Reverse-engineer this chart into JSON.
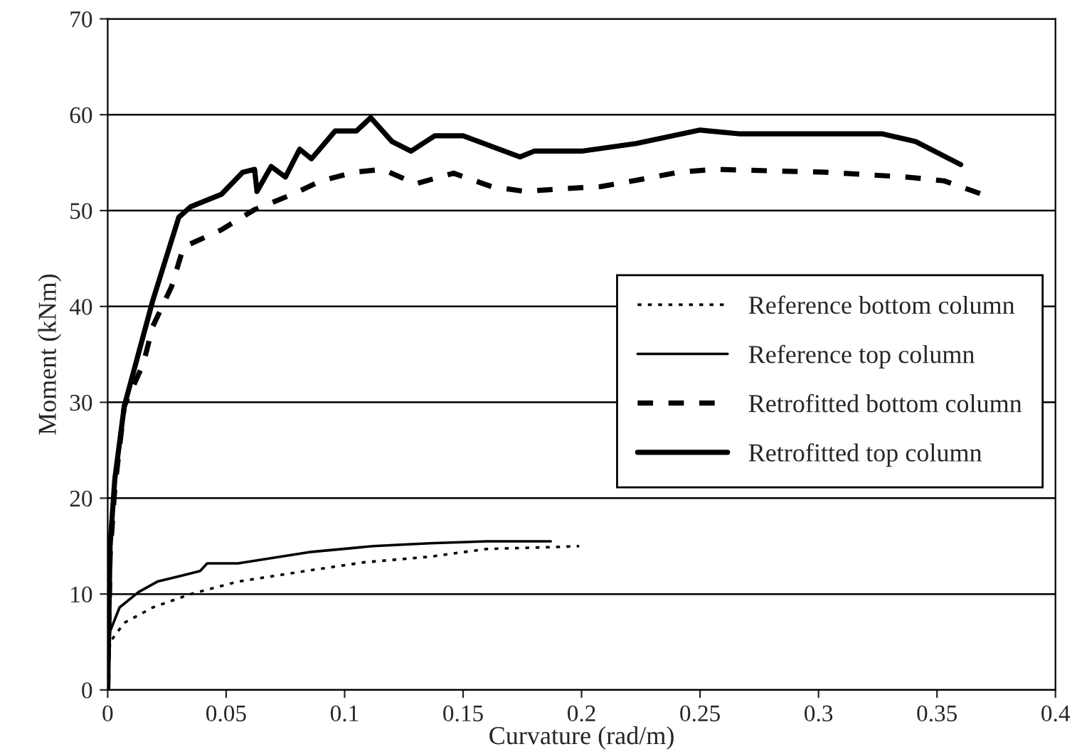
{
  "chart_data": {
    "type": "line",
    "xlabel": "Curvature (rad/m)",
    "ylabel": "Moment (kNm)",
    "xlim": [
      0,
      0.4
    ],
    "xticks": [
      0,
      0.05,
      0.1,
      0.15,
      0.2,
      0.25,
      0.3,
      0.35,
      0.4
    ],
    "ylim": [
      0,
      70
    ],
    "yticks": [
      0,
      10,
      20,
      30,
      40,
      50,
      60,
      70
    ],
    "grid": "y",
    "legend": "right",
    "marker": "none",
    "series": [
      {
        "name": "Reference bottom column",
        "color": "#000000",
        "line_style": "dotted",
        "x": [
          0,
          0.0005,
          0.001,
          0.007,
          0.019,
          0.035,
          0.055,
          0.086,
          0.108,
          0.136,
          0.16,
          0.188,
          0.199
        ],
        "values": [
          0,
          3,
          5,
          7,
          8.6,
          10,
          11.3,
          12.5,
          13.3,
          13.9,
          14.7,
          14.9,
          15
        ]
      },
      {
        "name": "Reference top column",
        "color": "#000000",
        "line_style": "solid",
        "x": [
          0,
          0.0005,
          0.001,
          0.005,
          0.013,
          0.021,
          0.039,
          0.042,
          0.055,
          0.086,
          0.112,
          0.136,
          0.16,
          0.187
        ],
        "values": [
          0,
          4,
          6.1,
          8.6,
          10.2,
          11.3,
          12.4,
          13.2,
          13.2,
          14.4,
          15,
          15.3,
          15.5,
          15.5
        ]
      },
      {
        "name": "Retrofitted bottom column",
        "color": "#000000",
        "line_style": "dashed",
        "x": [
          0,
          0.001,
          0.003,
          0.007,
          0.015,
          0.019,
          0.027,
          0.032,
          0.048,
          0.062,
          0.078,
          0.09,
          0.104,
          0.116,
          0.13,
          0.146,
          0.162,
          0.176,
          0.193,
          0.208,
          0.224,
          0.241,
          0.256,
          0.303,
          0.337,
          0.353,
          0.369
        ],
        "values": [
          0,
          14,
          21,
          29.6,
          34,
          37.9,
          42.1,
          46.2,
          48,
          50.1,
          51.7,
          53.1,
          54,
          54.3,
          52.8,
          53.9,
          52.5,
          52,
          52.3,
          52.5,
          53.2,
          54,
          54.3,
          54,
          53.5,
          53.1,
          51.7
        ]
      },
      {
        "name": "Retrofitted top column",
        "color": "#000000",
        "line_style": "solid",
        "x": [
          0,
          0.001,
          0.003,
          0.007,
          0.019,
          0.03,
          0.035,
          0.048,
          0.057,
          0.062,
          0.063,
          0.069,
          0.075,
          0.081,
          0.086,
          0.096,
          0.105,
          0.111,
          0.12,
          0.128,
          0.138,
          0.15,
          0.174,
          0.18,
          0.2,
          0.223,
          0.25,
          0.267,
          0.327,
          0.341,
          0.36
        ],
        "values": [
          0,
          15,
          22,
          29.6,
          40.6,
          49.3,
          50.4,
          51.7,
          54,
          54.3,
          52,
          54.6,
          53.5,
          56.4,
          55.4,
          58.3,
          58.3,
          59.7,
          57.2,
          56.2,
          57.8,
          57.8,
          55.6,
          56.2,
          56.2,
          57,
          58.4,
          58,
          58,
          57.2,
          54.8
        ]
      }
    ]
  }
}
